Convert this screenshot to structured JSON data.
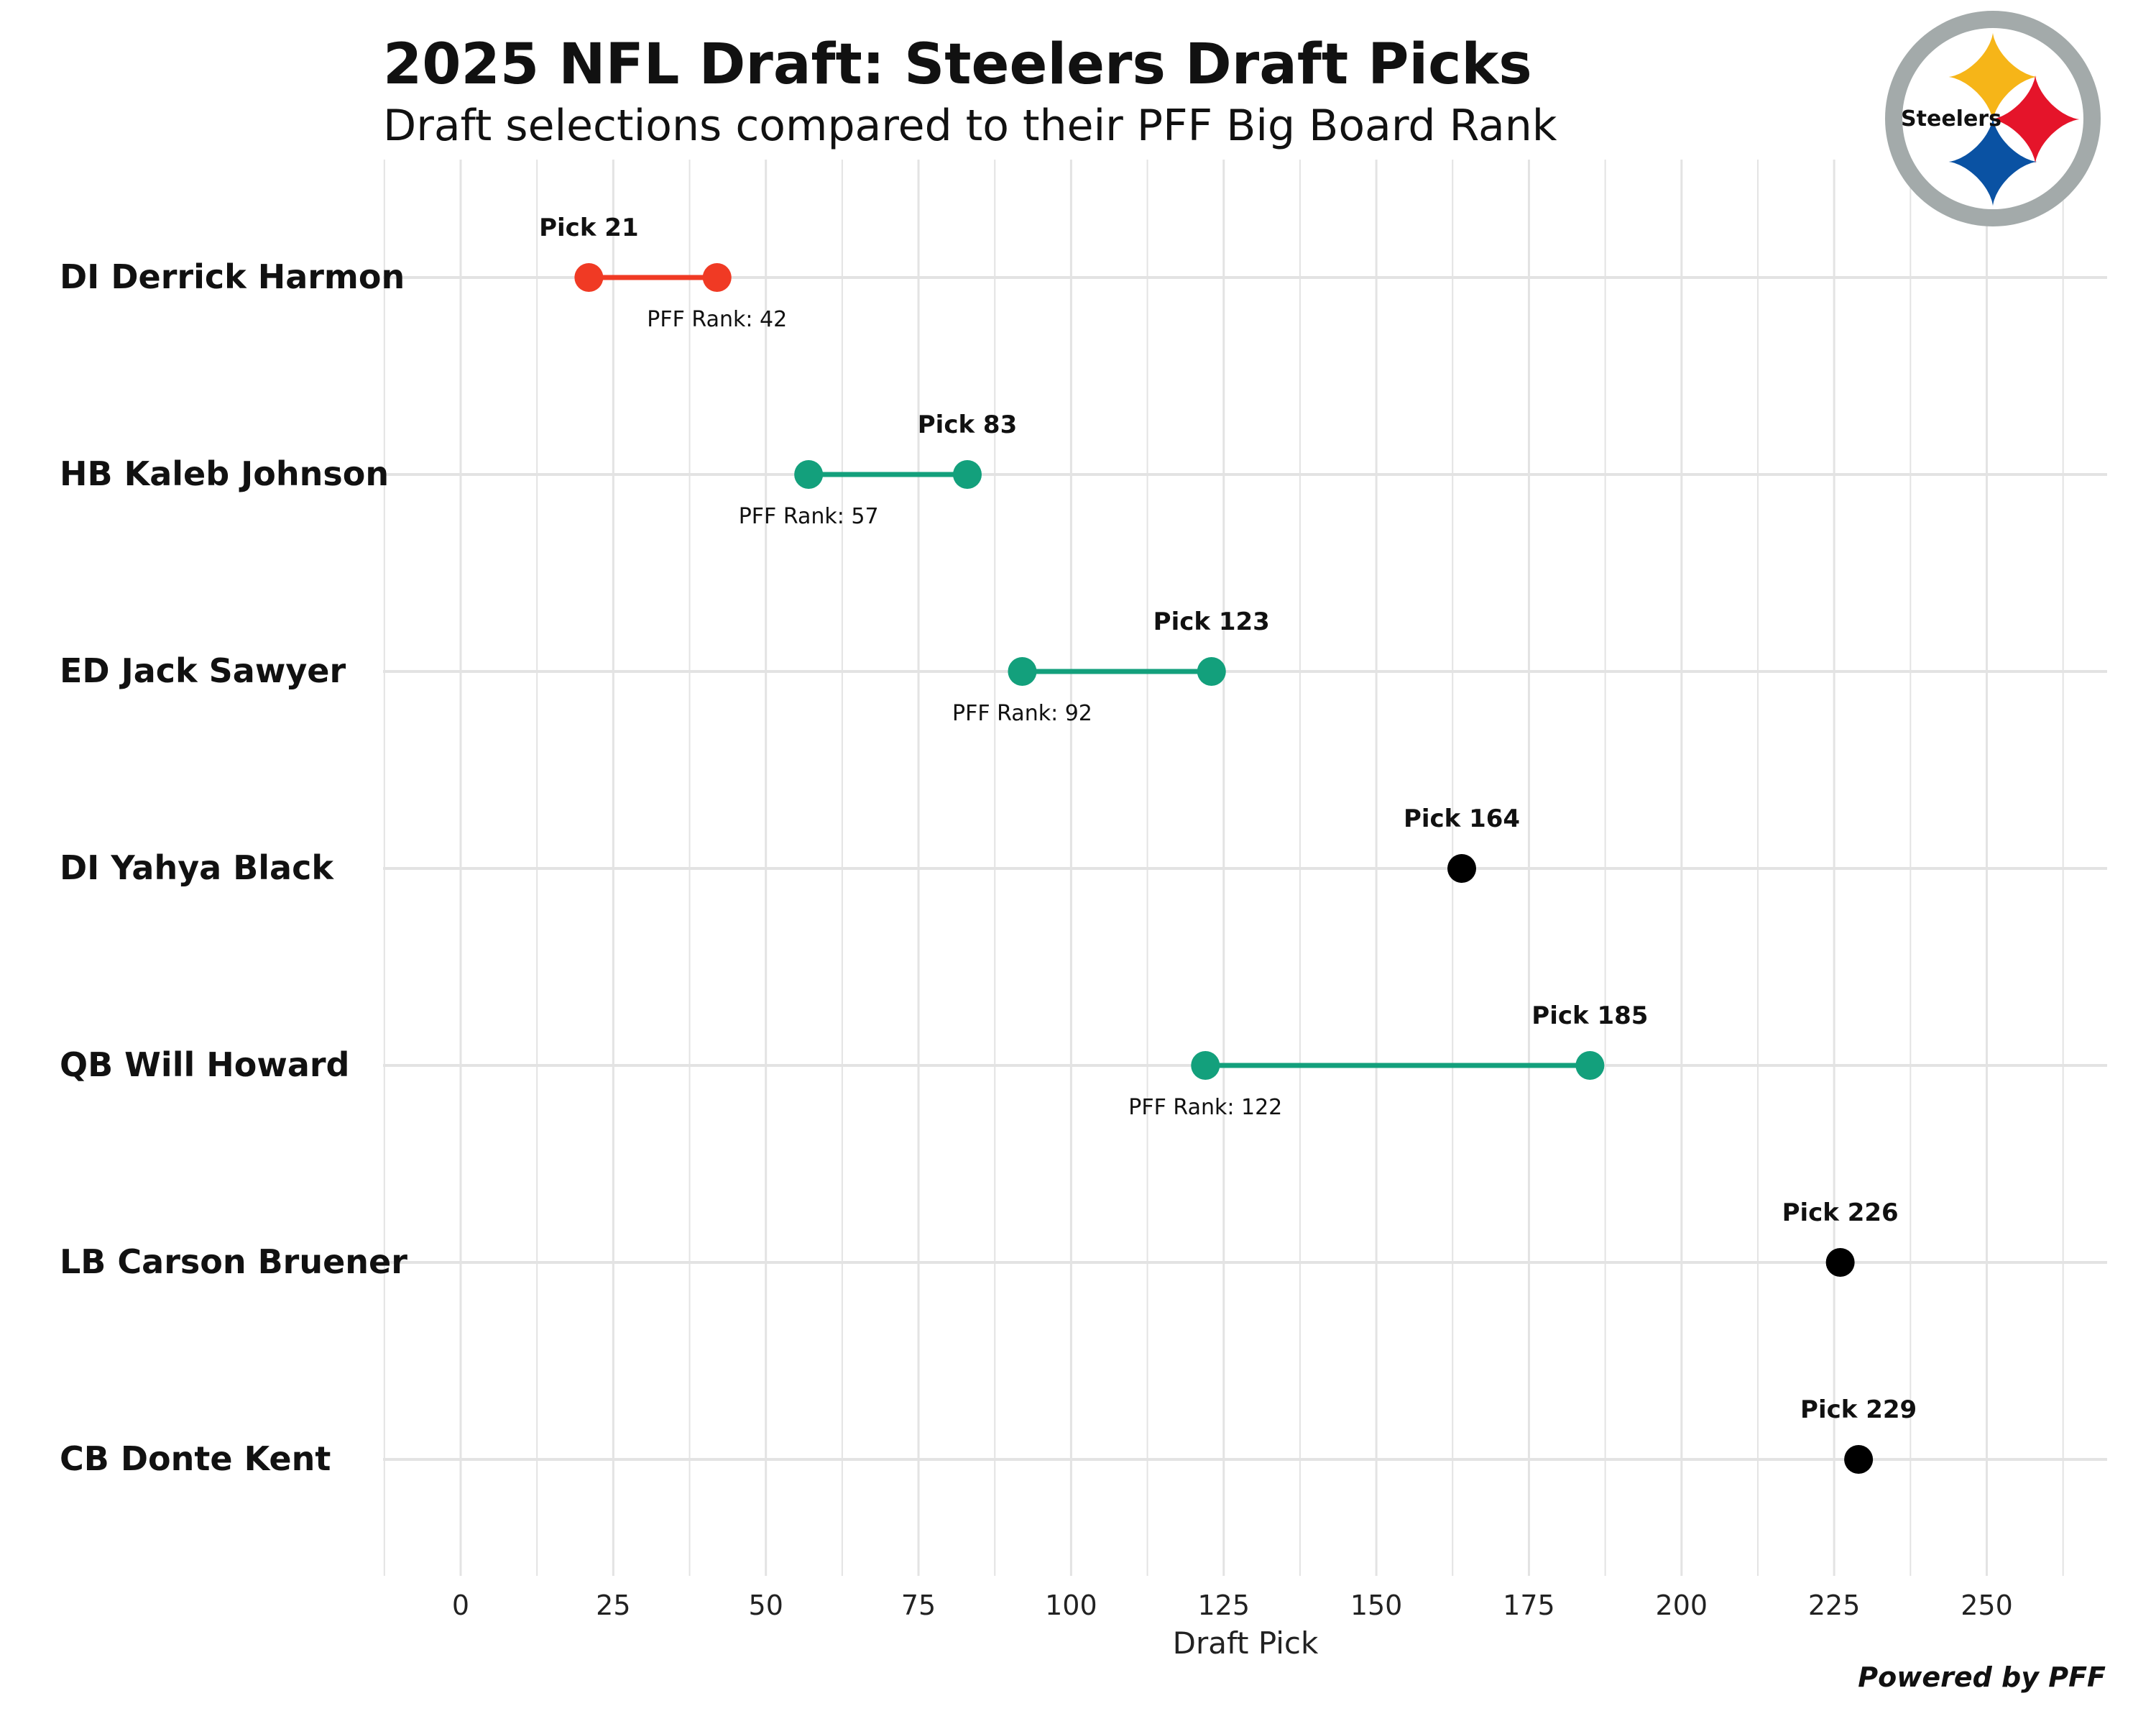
{
  "chart_data": {
    "type": "dumbbell",
    "title": "2025 NFL Draft: Steelers Draft Picks",
    "subtitle": "Draft selections compared to their PFF Big Board Rank",
    "xlabel": "Draft Pick",
    "xlim": [
      -12,
      270
    ],
    "xticks": [
      0,
      25,
      50,
      75,
      100,
      125,
      150,
      175,
      200,
      225,
      250
    ],
    "pick_prefix": "Pick ",
    "rank_prefix": "PFF Rank: ",
    "credit": "Powered by PFF",
    "logo_text": "Steelers",
    "colors": {
      "reach": "#f03a24",
      "value": "#13a07c",
      "none": "#000000",
      "grid": "#e3e3e3",
      "text": "#111111",
      "logo_ring": "#a3aaaa",
      "logo_gold": "#f6b518",
      "logo_red": "#e5142a",
      "logo_blue": "#0a52a3"
    },
    "players": [
      {
        "name": "DI Derrick Harmon",
        "pick": 21,
        "pff_rank": 42,
        "category": "reach"
      },
      {
        "name": "HB Kaleb Johnson",
        "pick": 83,
        "pff_rank": 57,
        "category": "value"
      },
      {
        "name": "ED Jack Sawyer",
        "pick": 123,
        "pff_rank": 92,
        "category": "value"
      },
      {
        "name": "DI Yahya Black",
        "pick": 164,
        "pff_rank": null,
        "category": "none"
      },
      {
        "name": "QB Will Howard",
        "pick": 185,
        "pff_rank": 122,
        "category": "value"
      },
      {
        "name": "LB Carson Bruener",
        "pick": 226,
        "pff_rank": null,
        "category": "none"
      },
      {
        "name": "CB Donte Kent",
        "pick": 229,
        "pff_rank": null,
        "category": "none"
      }
    ]
  }
}
